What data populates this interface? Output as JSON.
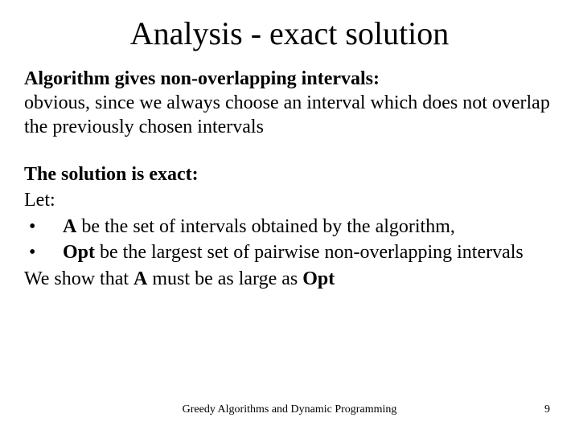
{
  "title": "Analysis - exact solution",
  "para1": {
    "lead": "Algorithm gives non-overlapping intervals:",
    "rest": "obvious, since we always choose an interval which does not overlap the previously chosen intervals"
  },
  "para2": {
    "lead": "The solution is exact:",
    "let": "Let:",
    "bullet1_before": " be the set of intervals obtained by the algorithm,",
    "bullet1_bold": "A",
    "bullet2_bold": "Opt",
    "bullet2_before": " be the largest set of pairwise non-overlapping intervals",
    "closing_pre": "We show that ",
    "closing_boldA": "A",
    "closing_mid": " must be as large as ",
    "closing_boldOpt": "Opt"
  },
  "footer": "Greedy Algorithms and Dynamic Programming",
  "page": "9",
  "colors": {
    "background": "#ffffff",
    "text": "#000000"
  },
  "typography": {
    "family": "Times New Roman",
    "title_fontsize": 40,
    "body_fontsize": 24,
    "footer_fontsize": 14
  }
}
